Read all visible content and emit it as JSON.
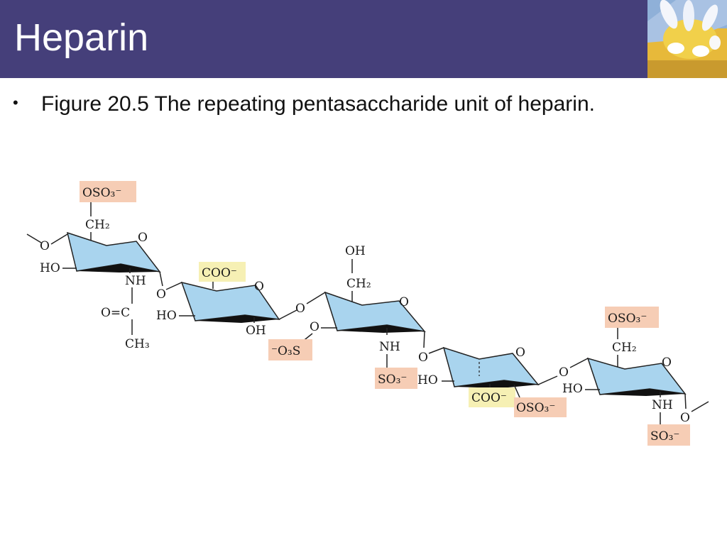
{
  "slide": {
    "title": "Heparin",
    "bullet": "Figure 20.5 The repeating pentasaccharide unit of heparin."
  },
  "colors": {
    "header": "#453f7a",
    "ring": "#a9d4ee",
    "sulfate_box": "#f6cdb5",
    "carboxyl_box": "#f6f0b4"
  },
  "diagram": {
    "ring_oxygen": "O",
    "link_oxygen": "O",
    "unit1": {
      "oso3_group": "OSO₃⁻",
      "ch2": "CH₂",
      "ho": "HO",
      "nh": "NH",
      "carbonyl": "O=C",
      "ch3": "CH₃"
    },
    "unit2": {
      "coo_group": "COO⁻",
      "ho": "HO",
      "oh": "OH",
      "o3s_group": "⁻O₃S"
    },
    "unit3": {
      "oh": "OH",
      "ch2": "CH₂",
      "nh": "NH",
      "so3_group": "SO₃⁻"
    },
    "unit4": {
      "ho": "HO",
      "coo_group": "COO⁻",
      "oso3_group": "OSO₃⁻"
    },
    "unit5": {
      "oso3_group": "OSO₃⁻",
      "ch2": "CH₂",
      "ho": "HO",
      "nh": "NH",
      "so3_group": "SO₃⁻"
    }
  }
}
